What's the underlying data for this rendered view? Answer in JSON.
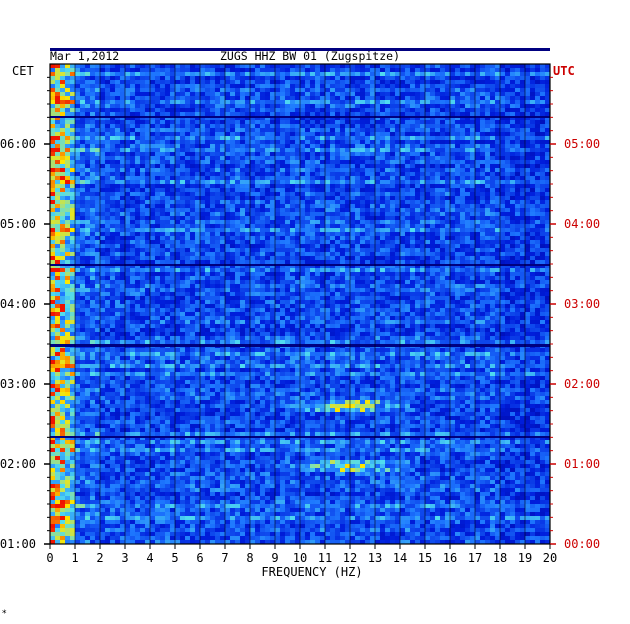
{
  "chart_data": {
    "type": "heatmap",
    "title": "ZUGS HHZ BW 01 (Zugspitze)",
    "date": "Mar 1,2012",
    "xlabel": "FREQUENCY (HZ)",
    "xlim": [
      0,
      20
    ],
    "x_ticks": [
      "0",
      "1",
      "2",
      "3",
      "4",
      "5",
      "6",
      "7",
      "8",
      "9",
      "10",
      "11",
      "12",
      "13",
      "14",
      "15",
      "16",
      "17",
      "18",
      "19",
      "20"
    ],
    "left_axis": {
      "label": "CET",
      "ticks": [
        "06:00",
        "05:00",
        "04:00",
        "03:00",
        "02:00",
        "01:00"
      ]
    },
    "right_axis": {
      "label": "UTC",
      "ticks": [
        "05:00",
        "04:00",
        "03:00",
        "02:00",
        "01:00",
        "00:00"
      ]
    },
    "colors": {
      "low": "#0000c8",
      "mid": "#2a7bff",
      "high": "#ffe000",
      "peak": "#ff0000",
      "utc": "#cc0000"
    },
    "features": [
      {
        "desc": "strong low-frequency energy",
        "freq_range_hz": [
          0,
          0.8
        ]
      },
      {
        "desc": "broadband event near 12 Hz",
        "freq_hz": 12,
        "utc_time": "01:00"
      },
      {
        "desc": "broadband event near 12 Hz",
        "freq_hz": 12,
        "utc_time": "01:45"
      }
    ]
  },
  "footer_mark": "*"
}
